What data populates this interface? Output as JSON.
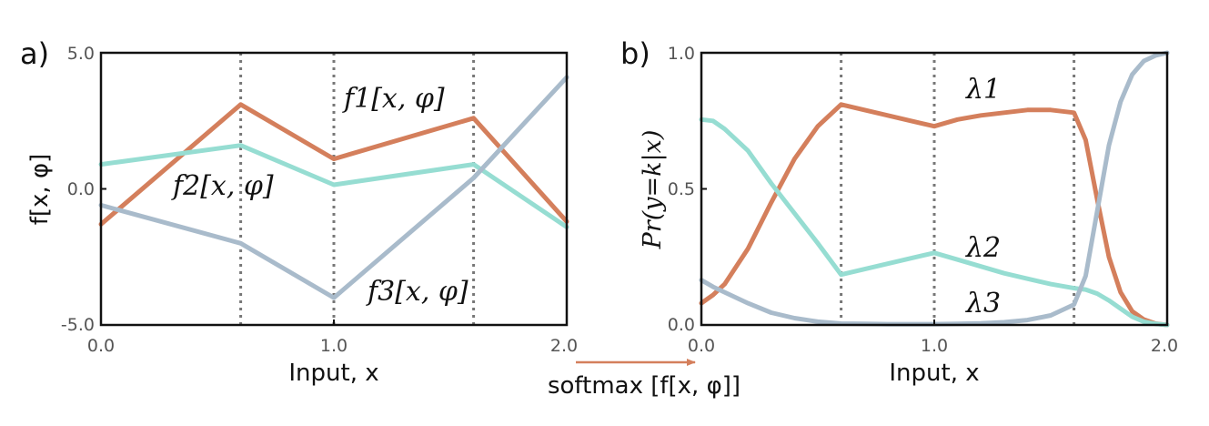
{
  "colors": {
    "series1": "#D47F5C",
    "series2": "#96DDD2",
    "series3": "#A9BBCB",
    "vline": "#777777",
    "arrow": "#D47F5C"
  },
  "softmax_label": "softmax [f[x, φ]]",
  "chart_data": [
    {
      "type": "line",
      "panel_label": "a)",
      "xlabel": "Input, x",
      "ylabel": "f[x, φ]",
      "xlim": [
        0.0,
        2.0
      ],
      "ylim": [
        -5.0,
        5.0
      ],
      "x_ticks": [
        "0.0",
        "1.0",
        "2.0"
      ],
      "y_ticks": [
        "5.0",
        "0.0",
        "-5.0"
      ],
      "vlines": [
        0.6,
        1.0,
        1.6
      ],
      "series": [
        {
          "name": "f1[x, φ]",
          "x": [
            0.0,
            0.6,
            1.0,
            1.6,
            2.0
          ],
          "y": [
            -1.3,
            3.1,
            1.1,
            2.6,
            -1.2
          ]
        },
        {
          "name": "f2[x, φ]",
          "x": [
            0.0,
            0.6,
            1.0,
            1.6,
            2.0
          ],
          "y": [
            0.9,
            1.6,
            0.15,
            0.9,
            -1.4
          ]
        },
        {
          "name": "f3[x, φ]",
          "x": [
            0.0,
            0.6,
            1.0,
            1.6,
            2.0
          ],
          "y": [
            -0.6,
            -2.0,
            -4.0,
            0.4,
            4.1
          ]
        }
      ],
      "annotations": [
        {
          "text": "f1[x, φ]",
          "series": 0
        },
        {
          "text": "f2[x, φ]",
          "series": 1
        },
        {
          "text": "f3[x, φ]",
          "series": 2
        }
      ]
    },
    {
      "type": "line",
      "panel_label": "b)",
      "xlabel": "Input, x",
      "ylabel": "Pr(y=k|x)",
      "xlim": [
        0.0,
        2.0
      ],
      "ylim": [
        0.0,
        1.0
      ],
      "x_ticks": [
        "0.0",
        "1.0",
        "2.0"
      ],
      "y_ticks": [
        "1.0",
        "0.5",
        "0.0"
      ],
      "vlines": [
        0.6,
        1.0,
        1.6
      ],
      "series": [
        {
          "name": "λ1",
          "x": [
            0.0,
            0.05,
            0.1,
            0.2,
            0.3,
            0.4,
            0.5,
            0.6,
            0.7,
            0.8,
            0.9,
            1.0,
            1.1,
            1.2,
            1.3,
            1.4,
            1.5,
            1.6,
            1.65,
            1.7,
            1.75,
            1.8,
            1.85,
            1.9,
            1.95,
            2.0
          ],
          "y": [
            0.08,
            0.11,
            0.15,
            0.28,
            0.45,
            0.61,
            0.73,
            0.81,
            0.79,
            0.77,
            0.75,
            0.73,
            0.755,
            0.77,
            0.78,
            0.79,
            0.79,
            0.78,
            0.68,
            0.46,
            0.25,
            0.12,
            0.05,
            0.02,
            0.005,
            0.0
          ]
        },
        {
          "name": "λ2",
          "x": [
            0.0,
            0.05,
            0.1,
            0.2,
            0.3,
            0.4,
            0.5,
            0.6,
            0.7,
            0.8,
            0.9,
            1.0,
            1.1,
            1.2,
            1.3,
            1.4,
            1.5,
            1.6,
            1.65,
            1.7,
            1.75,
            1.8,
            1.85,
            1.9,
            1.95,
            2.0
          ],
          "y": [
            0.755,
            0.75,
            0.72,
            0.64,
            0.52,
            0.41,
            0.3,
            0.185,
            0.205,
            0.225,
            0.245,
            0.265,
            0.24,
            0.215,
            0.19,
            0.17,
            0.15,
            0.135,
            0.13,
            0.115,
            0.09,
            0.06,
            0.03,
            0.012,
            0.004,
            0.0
          ]
        },
        {
          "name": "λ3",
          "x": [
            0.0,
            0.05,
            0.1,
            0.2,
            0.3,
            0.4,
            0.5,
            0.6,
            0.7,
            0.8,
            0.9,
            1.0,
            1.1,
            1.2,
            1.3,
            1.4,
            1.5,
            1.6,
            1.65,
            1.7,
            1.75,
            1.8,
            1.85,
            1.9,
            1.95,
            2.0
          ],
          "y": [
            0.165,
            0.14,
            0.12,
            0.08,
            0.045,
            0.025,
            0.012,
            0.005,
            0.004,
            0.003,
            0.003,
            0.003,
            0.004,
            0.006,
            0.01,
            0.018,
            0.035,
            0.075,
            0.18,
            0.42,
            0.66,
            0.82,
            0.92,
            0.97,
            0.99,
            1.0
          ]
        }
      ],
      "annotations": [
        {
          "text": "λ1",
          "series": 0
        },
        {
          "text": "λ2",
          "series": 1
        },
        {
          "text": "λ3",
          "series": 2
        }
      ]
    }
  ]
}
